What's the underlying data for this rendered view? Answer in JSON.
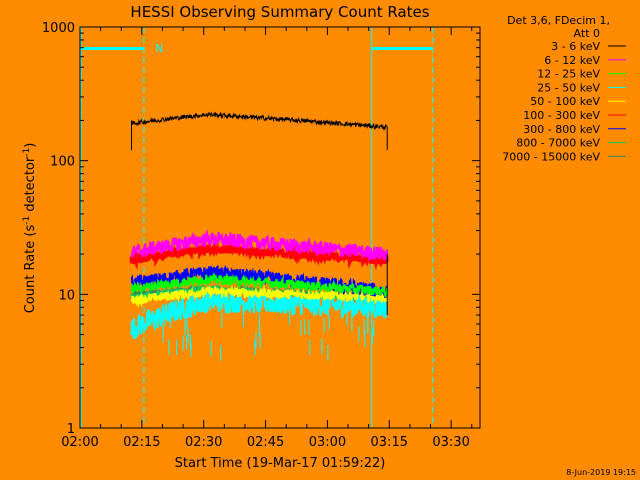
{
  "chart_data": {
    "type": "line",
    "title": "HESSI Observing Summary Count Rates",
    "xlabel": "Start Time (19-Mar-17 01:59:22)",
    "ylabel": "Count Rate (s",
    "ylabel_sup1": "-1",
    "ylabel_mid": " detector",
    "ylabel_sup2": "-1",
    "ylabel_end": ")",
    "yscale": "log",
    "ylim": [
      1,
      1000
    ],
    "xlim_minutes_after_0200": [
      0,
      97
    ],
    "x_ticks": [
      "02:00",
      "02:15",
      "02:30",
      "02:45",
      "03:00",
      "03:15",
      "03:30"
    ],
    "y_ticks": [
      "1",
      "10",
      "100",
      "1000"
    ],
    "grid": false,
    "legend_position": "right",
    "legend_header_line1": "Det 3,6, FDecim 1,",
    "legend_header_line2": "Att 0",
    "flag_label": "N",
    "footer_date": "8-Jun-2019 19:15",
    "data_window_minutes_after_0200": [
      12.5,
      74.5
    ],
    "night_intervals_minutes_after_0200": [
      [
        0,
        15.5
      ],
      [
        70.5,
        85.5
      ]
    ],
    "series": [
      {
        "name": "3 - 6 keV",
        "color": "#000000",
        "start": 190,
        "peak": 222,
        "end": 178,
        "noise": 0.04,
        "spikes": false
      },
      {
        "name": "6 - 12 keV",
        "color": "#ff00ff",
        "start": 20.5,
        "peak": 26,
        "end": 20,
        "noise": 0.12,
        "spikes": false
      },
      {
        "name": "12 - 25 keV",
        "color": "#00ff00",
        "start": 11,
        "peak": 13,
        "end": 10.5,
        "noise": 0.08,
        "spikes": false
      },
      {
        "name": "25 - 50 keV",
        "color": "#00ffff",
        "start": 5.5,
        "peak": 9,
        "end": 8,
        "noise": 0.2,
        "spikes": true
      },
      {
        "name": "50 - 100 keV",
        "color": "#ffff00",
        "start": 9,
        "peak": 10.5,
        "end": 9.5,
        "noise": 0.08,
        "spikes": false
      },
      {
        "name": "100 - 300 keV",
        "color": "#ff0000",
        "start": 18,
        "peak": 22,
        "end": 18,
        "noise": 0.07,
        "spikes": false
      },
      {
        "name": "300 - 800 keV",
        "color": "#0000ff",
        "start": 12,
        "peak": 14.5,
        "end": 10.5,
        "noise": 0.12,
        "spikes": false
      },
      {
        "name": "800 - 7000 keV",
        "color": "#00cc66",
        "start": 9.5,
        "peak": 11,
        "end": 9,
        "noise": 0.05,
        "spikes": false
      },
      {
        "name": "7000 - 15000 keV",
        "color": "#2e8b57",
        "start": 10,
        "peak": 11,
        "end": 9.5,
        "noise": 0.04,
        "spikes": false
      }
    ]
  }
}
